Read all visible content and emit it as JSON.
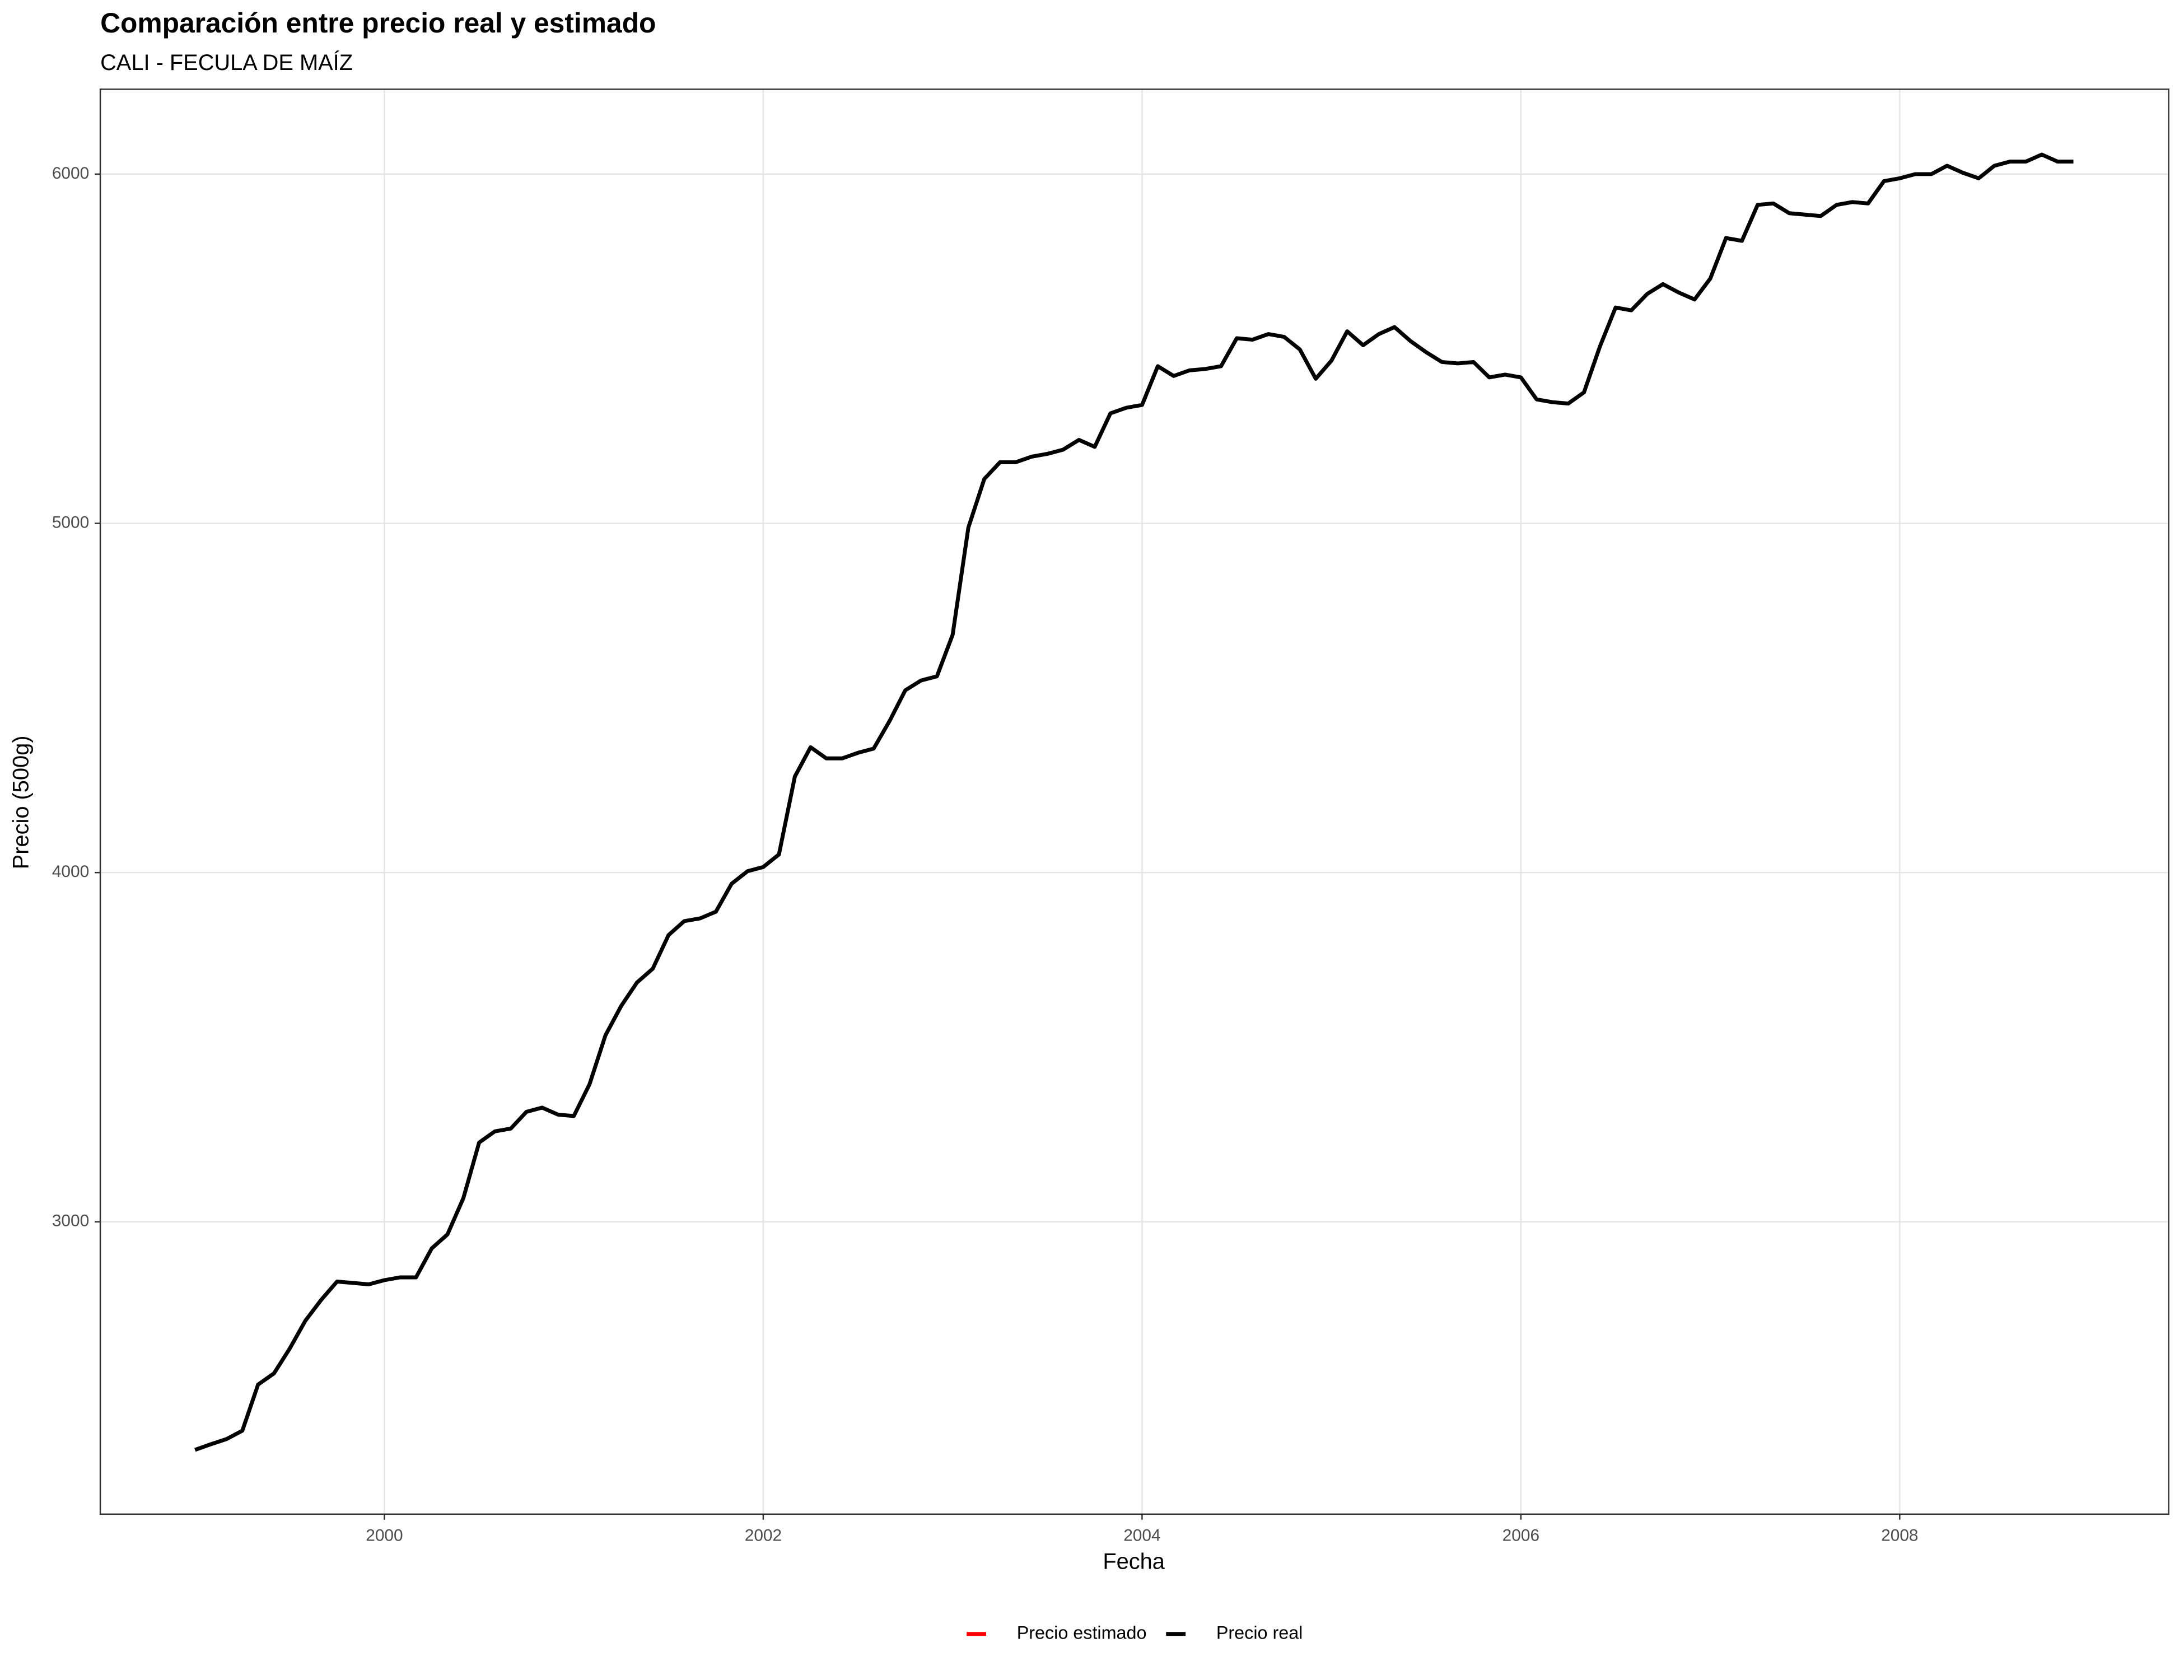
{
  "chart_data": {
    "type": "line",
    "title": "Comparación entre precio real y estimado",
    "subtitle": "CALI - FECULA DE MAÍZ",
    "x_label": "Fecha",
    "y_label": "Precio (500g)",
    "x": [
      1999,
      1999.083,
      1999.167,
      1999.25,
      1999.333,
      1999.417,
      1999.5,
      1999.583,
      1999.667,
      1999.75,
      1999.833,
      1999.917,
      2000,
      2000.083,
      2000.167,
      2000.25,
      2000.333,
      2000.417,
      2000.5,
      2000.583,
      2000.667,
      2000.75,
      2000.833,
      2000.917,
      2001,
      2001.083,
      2001.167,
      2001.25,
      2001.333,
      2001.417,
      2001.5,
      2001.583,
      2001.667,
      2001.75,
      2001.833,
      2001.917,
      2002,
      2002.083,
      2002.167,
      2002.25,
      2002.333,
      2002.417,
      2002.5,
      2002.583,
      2002.667,
      2002.75,
      2002.833,
      2002.917,
      2003,
      2003.083,
      2003.167,
      2003.25,
      2003.333,
      2003.417,
      2003.5,
      2003.583,
      2003.667,
      2003.75,
      2003.833,
      2003.917,
      2004,
      2004.083,
      2004.167,
      2004.25,
      2004.333,
      2004.417,
      2004.5,
      2004.583,
      2004.667,
      2004.75,
      2004.833,
      2004.917,
      2005,
      2005.083,
      2005.167,
      2005.25,
      2005.333,
      2005.417,
      2005.5,
      2005.583,
      2005.667,
      2005.75,
      2005.833,
      2005.917,
      2006,
      2006.083,
      2006.167,
      2006.25,
      2006.333,
      2006.417,
      2006.5,
      2006.583,
      2006.667,
      2006.75,
      2006.833,
      2006.917,
      2007,
      2007.083,
      2007.167,
      2007.25,
      2007.333,
      2007.417,
      2007.5,
      2007.583,
      2007.667,
      2007.75,
      2007.833,
      2007.917,
      2008,
      2008.083,
      2008.167,
      2008.25,
      2008.333,
      2008.417,
      2008.5,
      2008.583,
      2008.667,
      2008.75,
      2008.833,
      2008.917
    ],
    "series": [
      {
        "name": "Precio estimado",
        "color": "#ff0000",
        "values": [
          null,
          null,
          null,
          null,
          null,
          null,
          null,
          null,
          null,
          null,
          null,
          null,
          null,
          null,
          null,
          null,
          null,
          null,
          null,
          null,
          null,
          null,
          null,
          null,
          null,
          null,
          null,
          null,
          null,
          null,
          null,
          null,
          null,
          null,
          null,
          null,
          null,
          null,
          null,
          null,
          null,
          null,
          null,
          null,
          null,
          null,
          null,
          null,
          null,
          null,
          null,
          null,
          null,
          null,
          null,
          null,
          null,
          null,
          null,
          null,
          null,
          null,
          null,
          null,
          null,
          null,
          null,
          null,
          null,
          null,
          null,
          null,
          null,
          null,
          null,
          null,
          null,
          null,
          null,
          null,
          null,
          null,
          null,
          null,
          null,
          null,
          null,
          null,
          null,
          null,
          null,
          null,
          null,
          null,
          null,
          null,
          null,
          null,
          null,
          null,
          null,
          null,
          null,
          null,
          null,
          null,
          null,
          null,
          null,
          null,
          null,
          null,
          null,
          null,
          null,
          null,
          null,
          null,
          null,
          null
        ]
      },
      {
        "name": "Precio real",
        "color": "#000000",
        "values": [
          2347,
          2363,
          2378,
          2402,
          2534,
          2566,
          2637,
          2717,
          2777,
          2829,
          2825,
          2821,
          2833,
          2841,
          2841,
          2924,
          2964,
          3068,
          3227,
          3259,
          3267,
          3315,
          3327,
          3307,
          3303,
          3394,
          3534,
          3618,
          3685,
          3725,
          3821,
          3861,
          3869,
          3888,
          3968,
          4004,
          4016,
          4052,
          4275,
          4359,
          4327,
          4327,
          4343,
          4355,
          4434,
          4522,
          4550,
          4562,
          4681,
          4988,
          5127,
          5175,
          5175,
          5191,
          5199,
          5211,
          5239,
          5219,
          5315,
          5331,
          5339,
          5450,
          5422,
          5438,
          5442,
          5450,
          5530,
          5526,
          5542,
          5534,
          5498,
          5414,
          5466,
          5550,
          5510,
          5542,
          5562,
          5522,
          5490,
          5462,
          5458,
          5462,
          5418,
          5426,
          5418,
          5355,
          5347,
          5343,
          5375,
          5506,
          5618,
          5610,
          5657,
          5685,
          5661,
          5641,
          5701,
          5817,
          5809,
          5912,
          5916,
          5888,
          5884,
          5880,
          5912,
          5920,
          5916,
          5980,
          5988,
          6000,
          6000,
          6024,
          6004,
          5988,
          6024,
          6036,
          6036,
          6056,
          6036,
          6036
        ]
      }
    ],
    "xlim": [
      1998.5,
      2009.42
    ],
    "ylim": [
      2163,
      6243
    ],
    "xticks": [
      2000,
      2002,
      2004,
      2006,
      2008
    ],
    "yticks": [
      3000,
      4000,
      5000,
      6000
    ],
    "grid": true,
    "legend": "bottom"
  }
}
